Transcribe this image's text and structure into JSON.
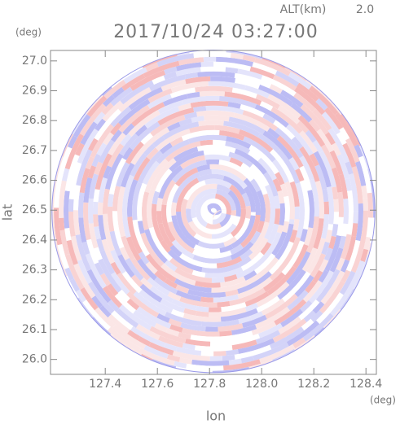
{
  "chart_data": {
    "type": "radar-map",
    "title": "2017/10/24 03:27:00",
    "altitude_label": "ALT(km)",
    "altitude": "2.0",
    "xlabel": "lon",
    "ylabel": "lat",
    "xunit": "(deg)",
    "yunit": "(deg)",
    "xlim": [
      127.19,
      128.44
    ],
    "ylim": [
      25.95,
      27.035
    ],
    "xticks": [
      127.4,
      127.6,
      127.8,
      {
        "value": 128.0,
        "label": "128.0"
      },
      128.2,
      128.4
    ],
    "yticks": [
      {
        "value": 26.0,
        "label": "26.0"
      },
      26.1,
      26.2,
      26.3,
      26.4,
      26.5,
      26.6,
      26.7,
      26.8,
      26.9,
      {
        "value": 27.0,
        "label": "27.0"
      }
    ],
    "center": [
      127.815,
      26.496
    ]
  }
}
